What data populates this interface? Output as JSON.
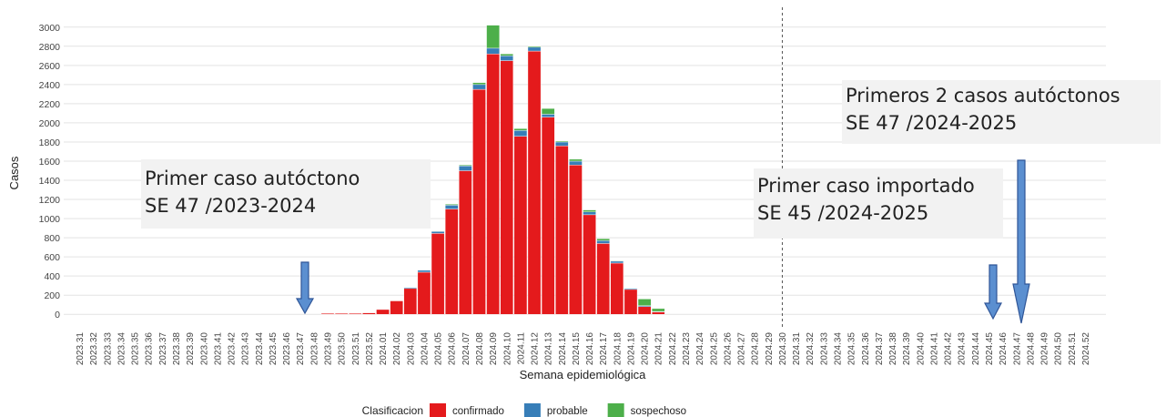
{
  "chart_data": {
    "type": "stacked_bar",
    "x_label": "Semana epidemiológica",
    "y_label": "Casos",
    "legend_title": "Clasificacion",
    "categories": [
      "2023.31",
      "2023.32",
      "2023.33",
      "2023.34",
      "2023.35",
      "2023.36",
      "2023.37",
      "2023.38",
      "2023.39",
      "2023.40",
      "2023.41",
      "2023.42",
      "2023.43",
      "2023.44",
      "2023.45",
      "2023.46",
      "2023.47",
      "2023.48",
      "2023.49",
      "2023.50",
      "2023.51",
      "2023.52",
      "2024.01",
      "2024.02",
      "2024.03",
      "2024.04",
      "2024.05",
      "2024.06",
      "2024.07",
      "2024.08",
      "2024.09",
      "2024.10",
      "2024.11",
      "2024.12",
      "2024.13",
      "2024.14",
      "2024.15",
      "2024.16",
      "2024.17",
      "2024.18",
      "2024.19",
      "2024.20",
      "2024.21",
      "2024.22",
      "2024.23",
      "2024.24",
      "2024.25",
      "2024.26",
      "2024.27",
      "2024.28",
      "2024.29",
      "2024.30",
      "2024.31",
      "2024.32",
      "2024.33",
      "2024.34",
      "2024.35",
      "2024.36",
      "2024.37",
      "2024.38",
      "2024.39",
      "2024.40",
      "2024.41",
      "2024.42",
      "2024.43",
      "2024.44",
      "2024.45",
      "2024.46",
      "2024.47",
      "2024.48",
      "2024.49",
      "2024.50",
      "2024.51",
      "2024.52"
    ],
    "series": [
      {
        "name": "confirmado",
        "color": "#e41a1c",
        "values": [
          0,
          0,
          0,
          0,
          0,
          0,
          0,
          0,
          0,
          0,
          0,
          0,
          0,
          0,
          0,
          0,
          0,
          0,
          10,
          10,
          10,
          15,
          50,
          140,
          270,
          440,
          845,
          1100,
          1500,
          2350,
          2720,
          2650,
          1860,
          2750,
          2060,
          1760,
          1560,
          1040,
          740,
          535,
          260,
          80,
          25,
          0,
          0,
          0,
          0,
          0,
          0,
          0,
          0,
          0,
          0,
          0,
          0,
          0,
          0,
          0,
          0,
          0,
          0,
          0,
          0,
          0,
          0,
          0,
          0,
          0,
          0,
          0,
          0,
          0,
          0,
          0
        ]
      },
      {
        "name": "probable",
        "color": "#377eb8",
        "values": [
          0,
          0,
          0,
          0,
          0,
          0,
          0,
          0,
          0,
          0,
          0,
          0,
          0,
          0,
          0,
          0,
          0,
          0,
          0,
          0,
          0,
          0,
          0,
          0,
          10,
          20,
          20,
          40,
          50,
          50,
          60,
          50,
          60,
          40,
          30,
          40,
          40,
          30,
          30,
          20,
          10,
          10,
          5,
          0,
          0,
          0,
          0,
          0,
          0,
          0,
          0,
          0,
          0,
          0,
          0,
          0,
          0,
          0,
          0,
          0,
          0,
          0,
          0,
          0,
          0,
          0,
          0,
          0,
          0,
          0,
          0,
          0,
          0,
          0
        ]
      },
      {
        "name": "sospechoso",
        "color": "#4daf4a",
        "values": [
          0,
          0,
          0,
          0,
          0,
          0,
          0,
          0,
          0,
          0,
          0,
          0,
          0,
          0,
          0,
          0,
          0,
          0,
          0,
          0,
          0,
          0,
          0,
          0,
          0,
          0,
          5,
          10,
          10,
          20,
          240,
          20,
          20,
          10,
          60,
          10,
          20,
          20,
          20,
          5,
          0,
          70,
          30,
          0,
          0,
          0,
          0,
          0,
          0,
          0,
          0,
          0,
          0,
          0,
          0,
          0,
          0,
          0,
          0,
          0,
          0,
          0,
          0,
          0,
          0,
          0,
          0,
          0,
          0,
          0,
          0,
          0,
          0,
          0
        ]
      }
    ],
    "ylim": [
      -150,
      3150
    ],
    "yticks": [
      0,
      200,
      400,
      600,
      800,
      1000,
      1200,
      1400,
      1600,
      1800,
      2000,
      2200,
      2400,
      2600,
      2800,
      3000
    ],
    "grid": true,
    "vline": "2024.30",
    "annotations": [
      {
        "lines": [
          "Primer caso autóctono",
          "SE 47 /2023-2024"
        ]
      },
      {
        "lines": [
          "Primer caso importado",
          "SE 45 /2024-2025"
        ]
      },
      {
        "lines": [
          "Primeros 2 casos autóctonos",
          "SE 47 /2024-2025"
        ]
      }
    ]
  }
}
